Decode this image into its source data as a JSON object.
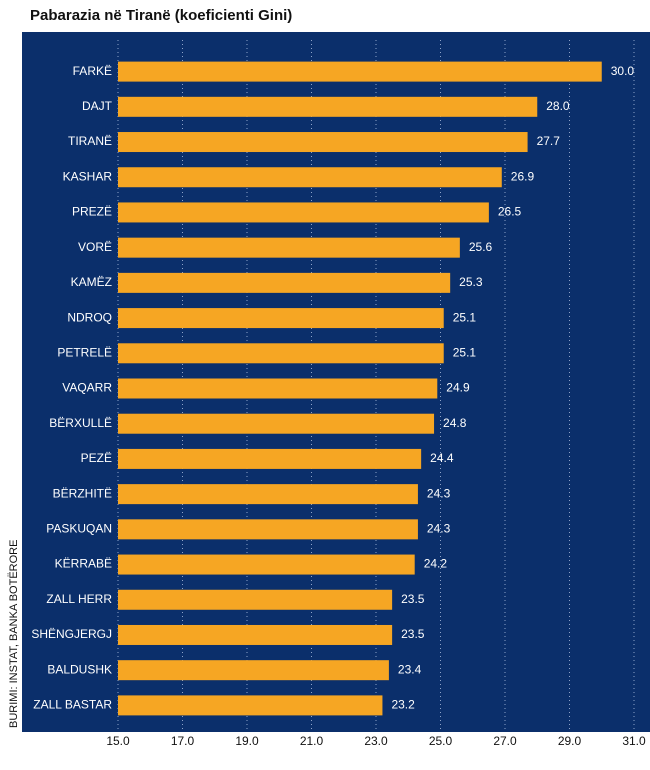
{
  "chart_data": {
    "type": "bar",
    "orientation": "horizontal",
    "title": "Pabarazia në Tiranë (koeficienti Gini)",
    "source": "BURIMI: INSTAT, BANKA BOTËRORE",
    "categories": [
      "FARKË",
      "DAJT",
      "TIRANË",
      "KASHAR",
      "PREZË",
      "VORË",
      "KAMËZ",
      "NDROQ",
      "PETRELË",
      "VAQARR",
      "BËRXULLË",
      "PEZË",
      "BËRZHITË",
      "PASKUQAN",
      "KËRRABË",
      "ZALL HERR",
      "SHËNGJERGJ",
      "BALDUSHK",
      "ZALL BASTAR"
    ],
    "values": [
      30.0,
      28.0,
      27.7,
      26.9,
      26.5,
      25.6,
      25.3,
      25.1,
      25.1,
      24.9,
      24.8,
      24.4,
      24.3,
      24.3,
      24.2,
      23.5,
      23.5,
      23.4,
      23.2
    ],
    "value_labels": [
      "30.0",
      "28.0",
      "27.7",
      "26.9",
      "26.5",
      "25.6",
      "25.3",
      "25.1",
      "25.1",
      "24.9",
      "24.8",
      "24.4",
      "24.3",
      "24.3",
      "24.2",
      "23.5",
      "23.5",
      "23.4",
      "23.2"
    ],
    "color": "#f6a623",
    "xlim": [
      15,
      31
    ],
    "xticks": [
      {
        "value": 15,
        "label": "15.0"
      },
      {
        "value": 17,
        "label": "17.0"
      },
      {
        "value": 19,
        "label": "19.0"
      },
      {
        "value": 21,
        "label": "21.0"
      },
      {
        "value": 23,
        "label": "23.0"
      },
      {
        "value": 25,
        "label": "25.0"
      },
      {
        "value": 27,
        "label": "27.0"
      },
      {
        "value": 29,
        "label": "29.0"
      },
      {
        "value": 31,
        "label": "31.0"
      }
    ],
    "grid": true
  }
}
